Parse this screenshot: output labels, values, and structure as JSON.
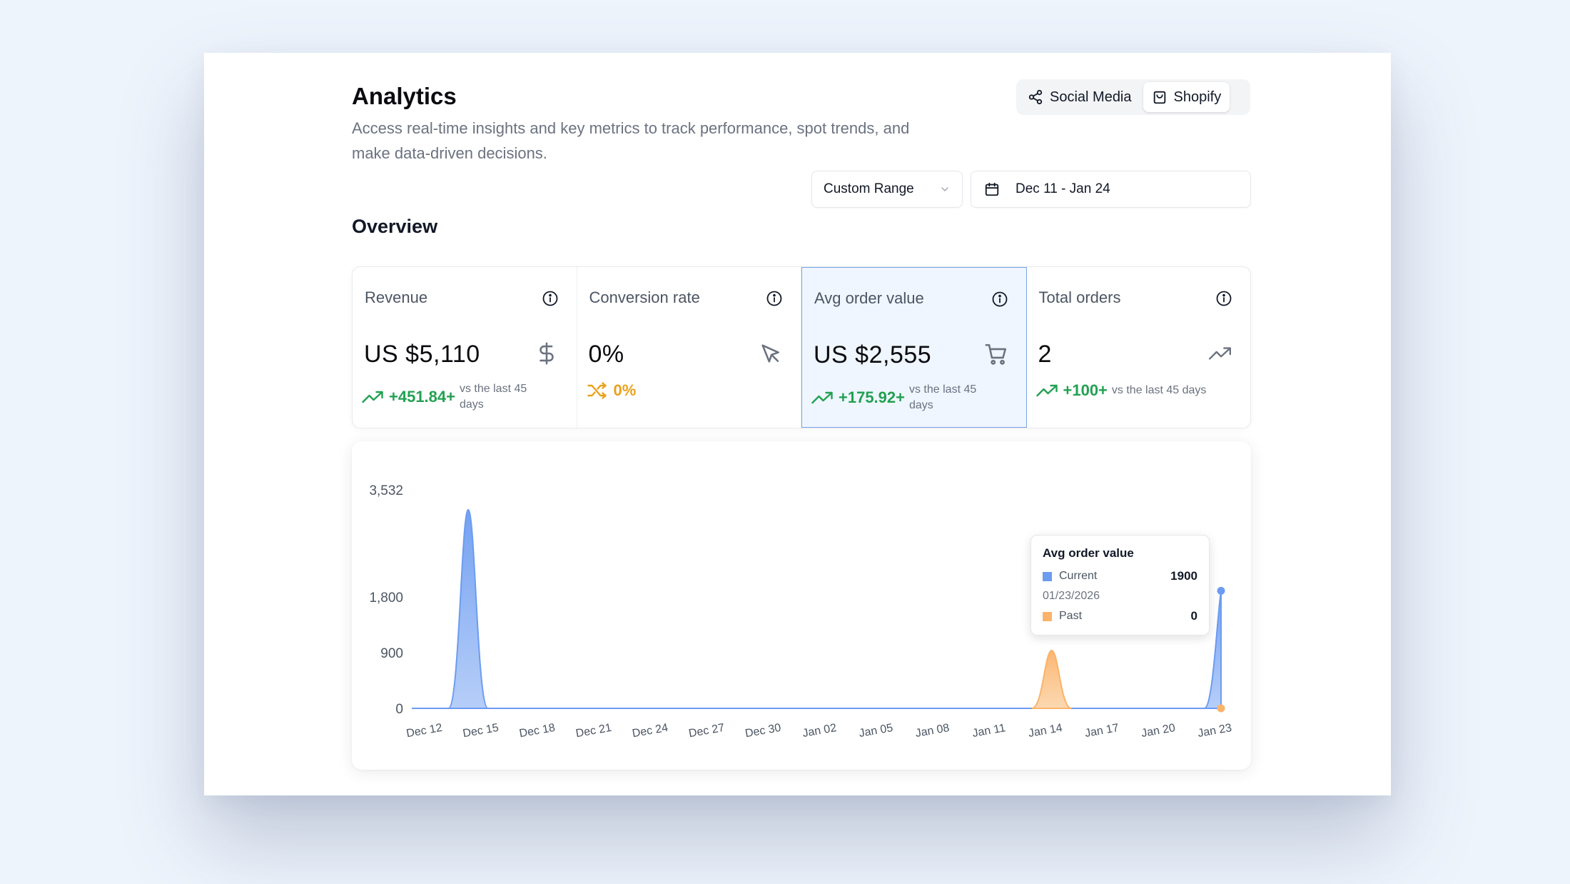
{
  "header": {
    "title": "Analytics",
    "description": "Access real-time insights and key metrics to track performance, spot trends, and make data-driven decisions."
  },
  "source_toggle": {
    "options": [
      {
        "label": "Social Media",
        "icon": "share-icon",
        "active": false
      },
      {
        "label": "Shopify",
        "icon": "shopping-bag-icon",
        "active": true
      }
    ]
  },
  "filters": {
    "range_label": "Custom Range",
    "date_range": "Dec 11 - Jan 24"
  },
  "overview": {
    "title": "Overview",
    "cards": [
      {
        "label": "Revenue",
        "value": "US $5,110",
        "icon": "dollar-icon",
        "trend": "+451.84+",
        "note": "vs the last 45 days",
        "direction": "up"
      },
      {
        "label": "Conversion rate",
        "value": "0%",
        "icon": "cursor-icon",
        "trend": "0%",
        "note": "",
        "direction": "flat"
      },
      {
        "label": "Avg order value",
        "value": "US $2,555",
        "icon": "cart-icon",
        "trend": "+175.92+",
        "note": "vs the last 45 days",
        "direction": "up",
        "selected": true
      },
      {
        "label": "Total orders",
        "value": "2",
        "icon": "trending-up-icon",
        "trend": "+100+",
        "note": "vs the last 45 days",
        "direction": "up"
      }
    ]
  },
  "colors": {
    "current": "#6c9cf0",
    "past": "#fbb36b",
    "positive": "#22a152",
    "neutral": "#eaa11a",
    "selected_border": "#7aa5ea"
  },
  "chart_data": {
    "type": "area",
    "y_ticks": [
      "0",
      "900",
      "1,800",
      "3,532"
    ],
    "x_tick_labels": [
      "Dec 12",
      "Dec 15",
      "Dec 18",
      "Dec 21",
      "Dec 24",
      "Dec 27",
      "Dec 30",
      "Jan 02",
      "Jan 05",
      "Jan 08",
      "Jan 11",
      "Jan 14",
      "Jan 17",
      "Jan 20",
      "Jan 23"
    ],
    "ylim": [
      0,
      3532
    ],
    "series": [
      {
        "name": "Current",
        "points": [
          {
            "x": "2025-12-14",
            "y": 3210
          },
          {
            "x": "2026-01-23",
            "y": 1900
          }
        ]
      },
      {
        "name": "Past",
        "points": [
          {
            "x": "2026-01-14",
            "y": 935
          }
        ]
      }
    ],
    "grid": false,
    "tooltip": {
      "title": "Avg order value",
      "current_label": "Current",
      "current_value": "1900",
      "date": "01/23/2026",
      "past_label": "Past",
      "past_value": "0"
    }
  }
}
